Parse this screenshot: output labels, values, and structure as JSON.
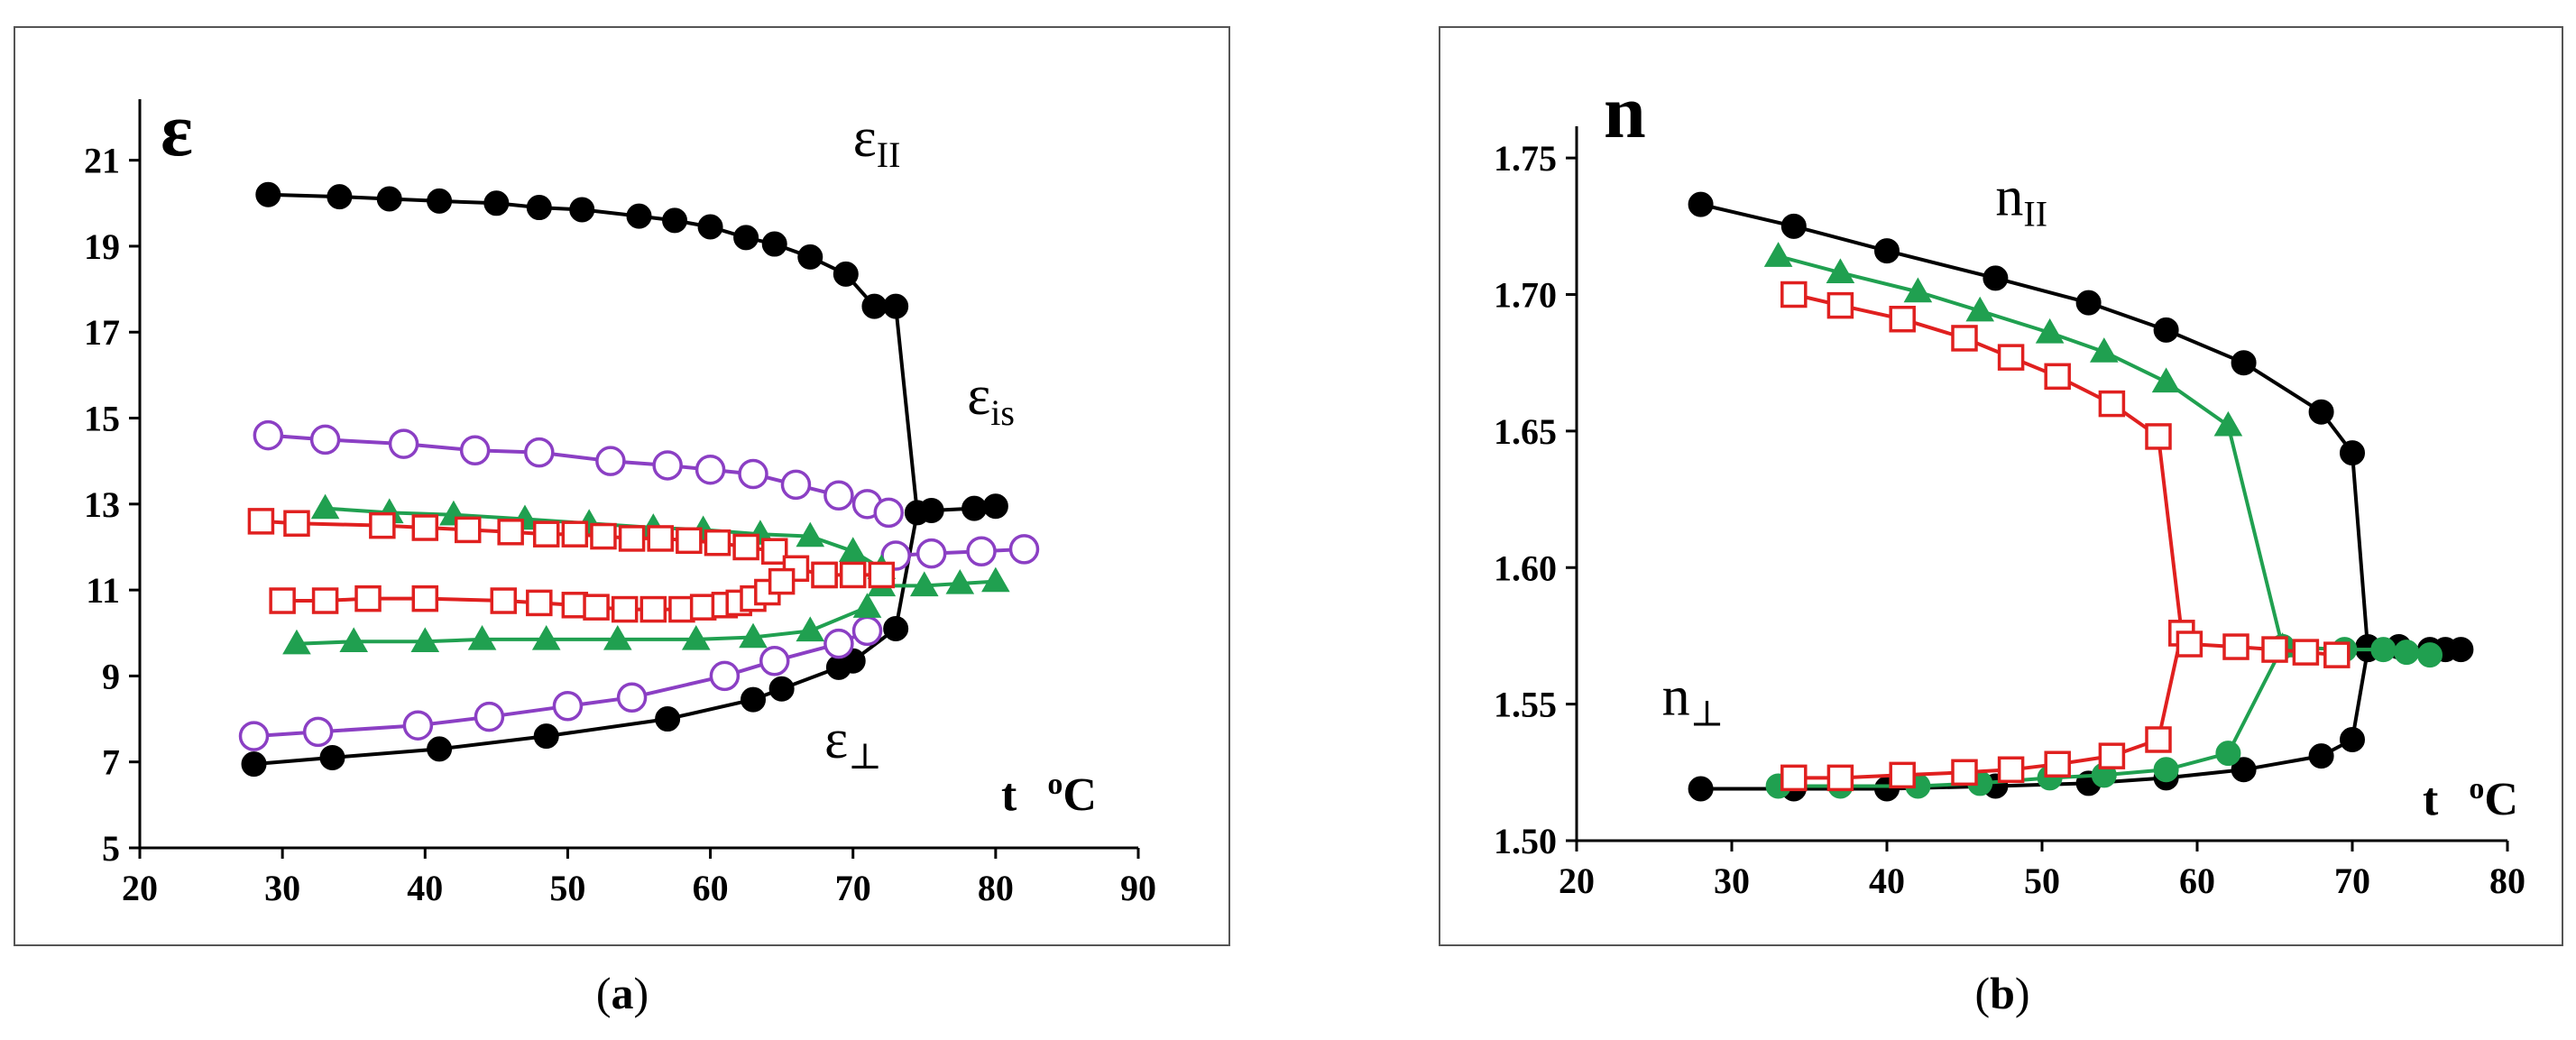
{
  "chart_data": [
    {
      "type": "line",
      "panel": "a",
      "caption_letter": "a",
      "title": "ε",
      "xlabel": "t °C",
      "x_unit_var": "t",
      "x_unit": "oC",
      "ylabel": "",
      "xlim": [
        20,
        90
      ],
      "ylim": [
        5,
        22
      ],
      "xticks": [
        20,
        30,
        40,
        50,
        60,
        70,
        80,
        90
      ],
      "yticks": [
        5,
        7,
        9,
        11,
        13,
        15,
        17,
        19,
        21
      ],
      "annotations": [
        {
          "id": "eps-par",
          "text": "ε",
          "sub": "II",
          "x": 70,
          "y": 21.1
        },
        {
          "id": "eps-is",
          "text": "ε",
          "sub": "is",
          "x": 78,
          "y": 15.1
        },
        {
          "id": "eps-perp",
          "text": "ε",
          "sub": "⊥",
          "x": 68,
          "y": 7.1
        }
      ],
      "series": [
        {
          "name": "ε∥ black",
          "color": "#000000",
          "marker": "filled-circle",
          "x": [
            29,
            34,
            37.5,
            41,
            45,
            48,
            51,
            55,
            57.5,
            60,
            62.5,
            64.5,
            67,
            69.5,
            71.5,
            73
          ],
          "y": [
            20.2,
            20.15,
            20.1,
            20.05,
            20.0,
            19.9,
            19.85,
            19.7,
            19.6,
            19.45,
            19.2,
            19.05,
            18.75,
            18.35,
            17.6,
            17.6
          ]
        },
        {
          "name": "εis black",
          "color": "#000000",
          "marker": "filled-circle",
          "connect_from": [
            73,
            17.6
          ],
          "x": [
            74.5,
            75.5,
            78.5,
            80
          ],
          "y": [
            12.8,
            12.85,
            12.9,
            12.95
          ]
        },
        {
          "name": "ε⊥ black",
          "color": "#000000",
          "marker": "filled-circle",
          "x": [
            28,
            33.5,
            41,
            48.5,
            57,
            63,
            65,
            69,
            70,
            73
          ],
          "y": [
            6.95,
            7.1,
            7.3,
            7.6,
            8.0,
            8.45,
            8.7,
            9.2,
            9.35,
            10.1
          ],
          "line_to": [
            74.5,
            12.8
          ]
        },
        {
          "name": "purple upper",
          "color": "#8B3FC4",
          "marker": "open-circle",
          "x": [
            29,
            33,
            38.5,
            43.5,
            48,
            53,
            57,
            60,
            63,
            66,
            69,
            71,
            72.5
          ],
          "y": [
            14.6,
            14.5,
            14.4,
            14.25,
            14.2,
            14.0,
            13.9,
            13.8,
            13.7,
            13.45,
            13.2,
            13.0,
            12.8
          ]
        },
        {
          "name": "purple isotropic",
          "color": "#8B3FC4",
          "marker": "open-circle",
          "x": [
            73,
            75.5,
            79,
            82
          ],
          "y": [
            11.8,
            11.85,
            11.9,
            11.95
          ]
        },
        {
          "name": "purple lower",
          "color": "#8B3FC4",
          "marker": "open-circle",
          "x": [
            28,
            32.5,
            39.5,
            44.5,
            50,
            54.5,
            61,
            64.5,
            69,
            71
          ],
          "y": [
            7.6,
            7.7,
            7.85,
            8.05,
            8.3,
            8.5,
            9.0,
            9.35,
            9.75,
            10.05
          ]
        },
        {
          "name": "green upper",
          "color": "#20A050",
          "marker": "filled-triangle",
          "x": [
            33,
            37.5,
            42,
            47,
            51.5,
            56,
            59.5,
            63.5,
            67,
            70,
            72
          ],
          "y": [
            12.9,
            12.8,
            12.75,
            12.65,
            12.55,
            12.45,
            12.4,
            12.3,
            12.25,
            11.9,
            11.5
          ]
        },
        {
          "name": "green lower",
          "color": "#20A050",
          "marker": "filled-triangle",
          "x": [
            31,
            35,
            40,
            44,
            48.5,
            53.5,
            59,
            63,
            67,
            71
          ],
          "y": [
            9.75,
            9.8,
            9.8,
            9.85,
            9.85,
            9.85,
            9.85,
            9.9,
            10.05,
            10.6
          ]
        },
        {
          "name": "green isotropic",
          "color": "#20A050",
          "marker": "filled-triangle",
          "x": [
            72,
            75,
            77.5,
            80
          ],
          "y": [
            11.1,
            11.1,
            11.15,
            11.2
          ]
        },
        {
          "name": "red upper",
          "color": "#E0201F",
          "marker": "open-square",
          "x": [
            28.5,
            31,
            37,
            40,
            43,
            46,
            48.5,
            50.5,
            52.5,
            54.5,
            56.5,
            58.5,
            60.5,
            62.5,
            64.5,
            66,
            68
          ],
          "y": [
            12.6,
            12.55,
            12.5,
            12.45,
            12.4,
            12.35,
            12.3,
            12.3,
            12.25,
            12.2,
            12.2,
            12.15,
            12.1,
            12.0,
            11.9,
            11.5,
            11.35
          ]
        },
        {
          "name": "red lower",
          "color": "#E0201F",
          "marker": "open-square",
          "x": [
            30,
            33,
            36,
            40,
            45.5,
            48,
            50.5,
            52,
            54,
            56,
            58,
            59.5,
            61,
            62,
            63,
            64,
            65
          ],
          "y": [
            10.75,
            10.75,
            10.8,
            10.8,
            10.75,
            10.7,
            10.65,
            10.6,
            10.55,
            10.55,
            10.55,
            10.6,
            10.65,
            10.7,
            10.8,
            10.95,
            11.2
          ]
        },
        {
          "name": "red isotropic",
          "color": "#E0201F",
          "marker": "open-square",
          "x": [
            68,
            70,
            72
          ],
          "y": [
            11.35,
            11.35,
            11.35
          ]
        }
      ]
    },
    {
      "type": "line",
      "panel": "b",
      "caption_letter": "b",
      "title": "n",
      "xlabel": "t °C",
      "x_unit_var": "t",
      "x_unit": "oC",
      "ylabel": "",
      "xlim": [
        20,
        80
      ],
      "ylim": [
        1.5,
        1.755
      ],
      "xticks": [
        20,
        30,
        40,
        50,
        60,
        70,
        80
      ],
      "yticks": [
        1.5,
        1.55,
        1.6,
        1.65,
        1.7,
        1.75
      ],
      "ytick_labels": [
        "1.50",
        "1.55",
        "1.60",
        "1.65",
        "1.70",
        "1.75"
      ],
      "annotations": [
        {
          "id": "n-par",
          "text": "n",
          "sub": "II",
          "x": 47,
          "y": 1.729
        },
        {
          "id": "n-perp",
          "text": "n",
          "sub": "⊥",
          "x": 25.5,
          "y": 1.546
        }
      ],
      "series": [
        {
          "name": "n∥ black",
          "color": "#000000",
          "marker": "filled-circle",
          "x": [
            28,
            34,
            40,
            47,
            53,
            58,
            63,
            68,
            70,
            71
          ],
          "y": [
            1.733,
            1.725,
            1.716,
            1.706,
            1.697,
            1.687,
            1.675,
            1.657,
            1.642,
            1.57
          ]
        },
        {
          "name": "n⊥ black",
          "color": "#000000",
          "marker": "filled-circle",
          "x": [
            28,
            34,
            40,
            47,
            53,
            58,
            63,
            68,
            70,
            71
          ],
          "y": [
            1.519,
            1.519,
            1.519,
            1.52,
            1.521,
            1.523,
            1.526,
            1.531,
            1.537,
            1.57
          ]
        },
        {
          "name": "n black isotropic",
          "color": "#000000",
          "marker": "filled-circle",
          "x": [
            71,
            73,
            75,
            76,
            77
          ],
          "y": [
            1.571,
            1.571,
            1.57,
            1.57,
            1.57
          ]
        },
        {
          "name": "green upper",
          "color": "#20A050",
          "marker": "filled-triangle",
          "x": [
            33,
            37,
            42,
            46,
            50.5,
            54,
            58,
            62,
            65.5
          ],
          "y": [
            1.714,
            1.708,
            1.701,
            1.694,
            1.686,
            1.679,
            1.668,
            1.652,
            1.571
          ]
        },
        {
          "name": "green lower",
          "color": "#20A050",
          "marker": "filled-circle",
          "x": [
            33,
            37,
            42,
            46,
            50.5,
            54,
            58,
            62,
            65.5
          ],
          "y": [
            1.52,
            1.52,
            1.52,
            1.521,
            1.523,
            1.524,
            1.526,
            1.532,
            1.571
          ]
        },
        {
          "name": "green isotropic",
          "color": "#20A050",
          "marker": "filled-circle",
          "x": [
            65.5,
            69.5,
            72,
            73.5,
            75
          ],
          "y": [
            1.571,
            1.57,
            1.57,
            1.569,
            1.568
          ]
        },
        {
          "name": "red upper",
          "color": "#E0201F",
          "marker": "open-square",
          "x": [
            34,
            37,
            41,
            45,
            48,
            51,
            54.5,
            57.5,
            59
          ],
          "y": [
            1.7,
            1.696,
            1.691,
            1.684,
            1.677,
            1.67,
            1.66,
            1.648,
            1.576
          ]
        },
        {
          "name": "red lower",
          "color": "#E0201F",
          "marker": "open-square",
          "x": [
            34,
            37,
            41,
            45,
            48,
            51,
            54.5,
            57.5,
            59
          ],
          "y": [
            1.523,
            1.523,
            1.524,
            1.525,
            1.526,
            1.528,
            1.531,
            1.537,
            1.576
          ]
        },
        {
          "name": "red isotropic",
          "color": "#E0201F",
          "marker": "open-square",
          "x": [
            59.5,
            62.5,
            65,
            67,
            69
          ],
          "y": [
            1.572,
            1.571,
            1.57,
            1.569,
            1.568
          ]
        }
      ]
    }
  ]
}
